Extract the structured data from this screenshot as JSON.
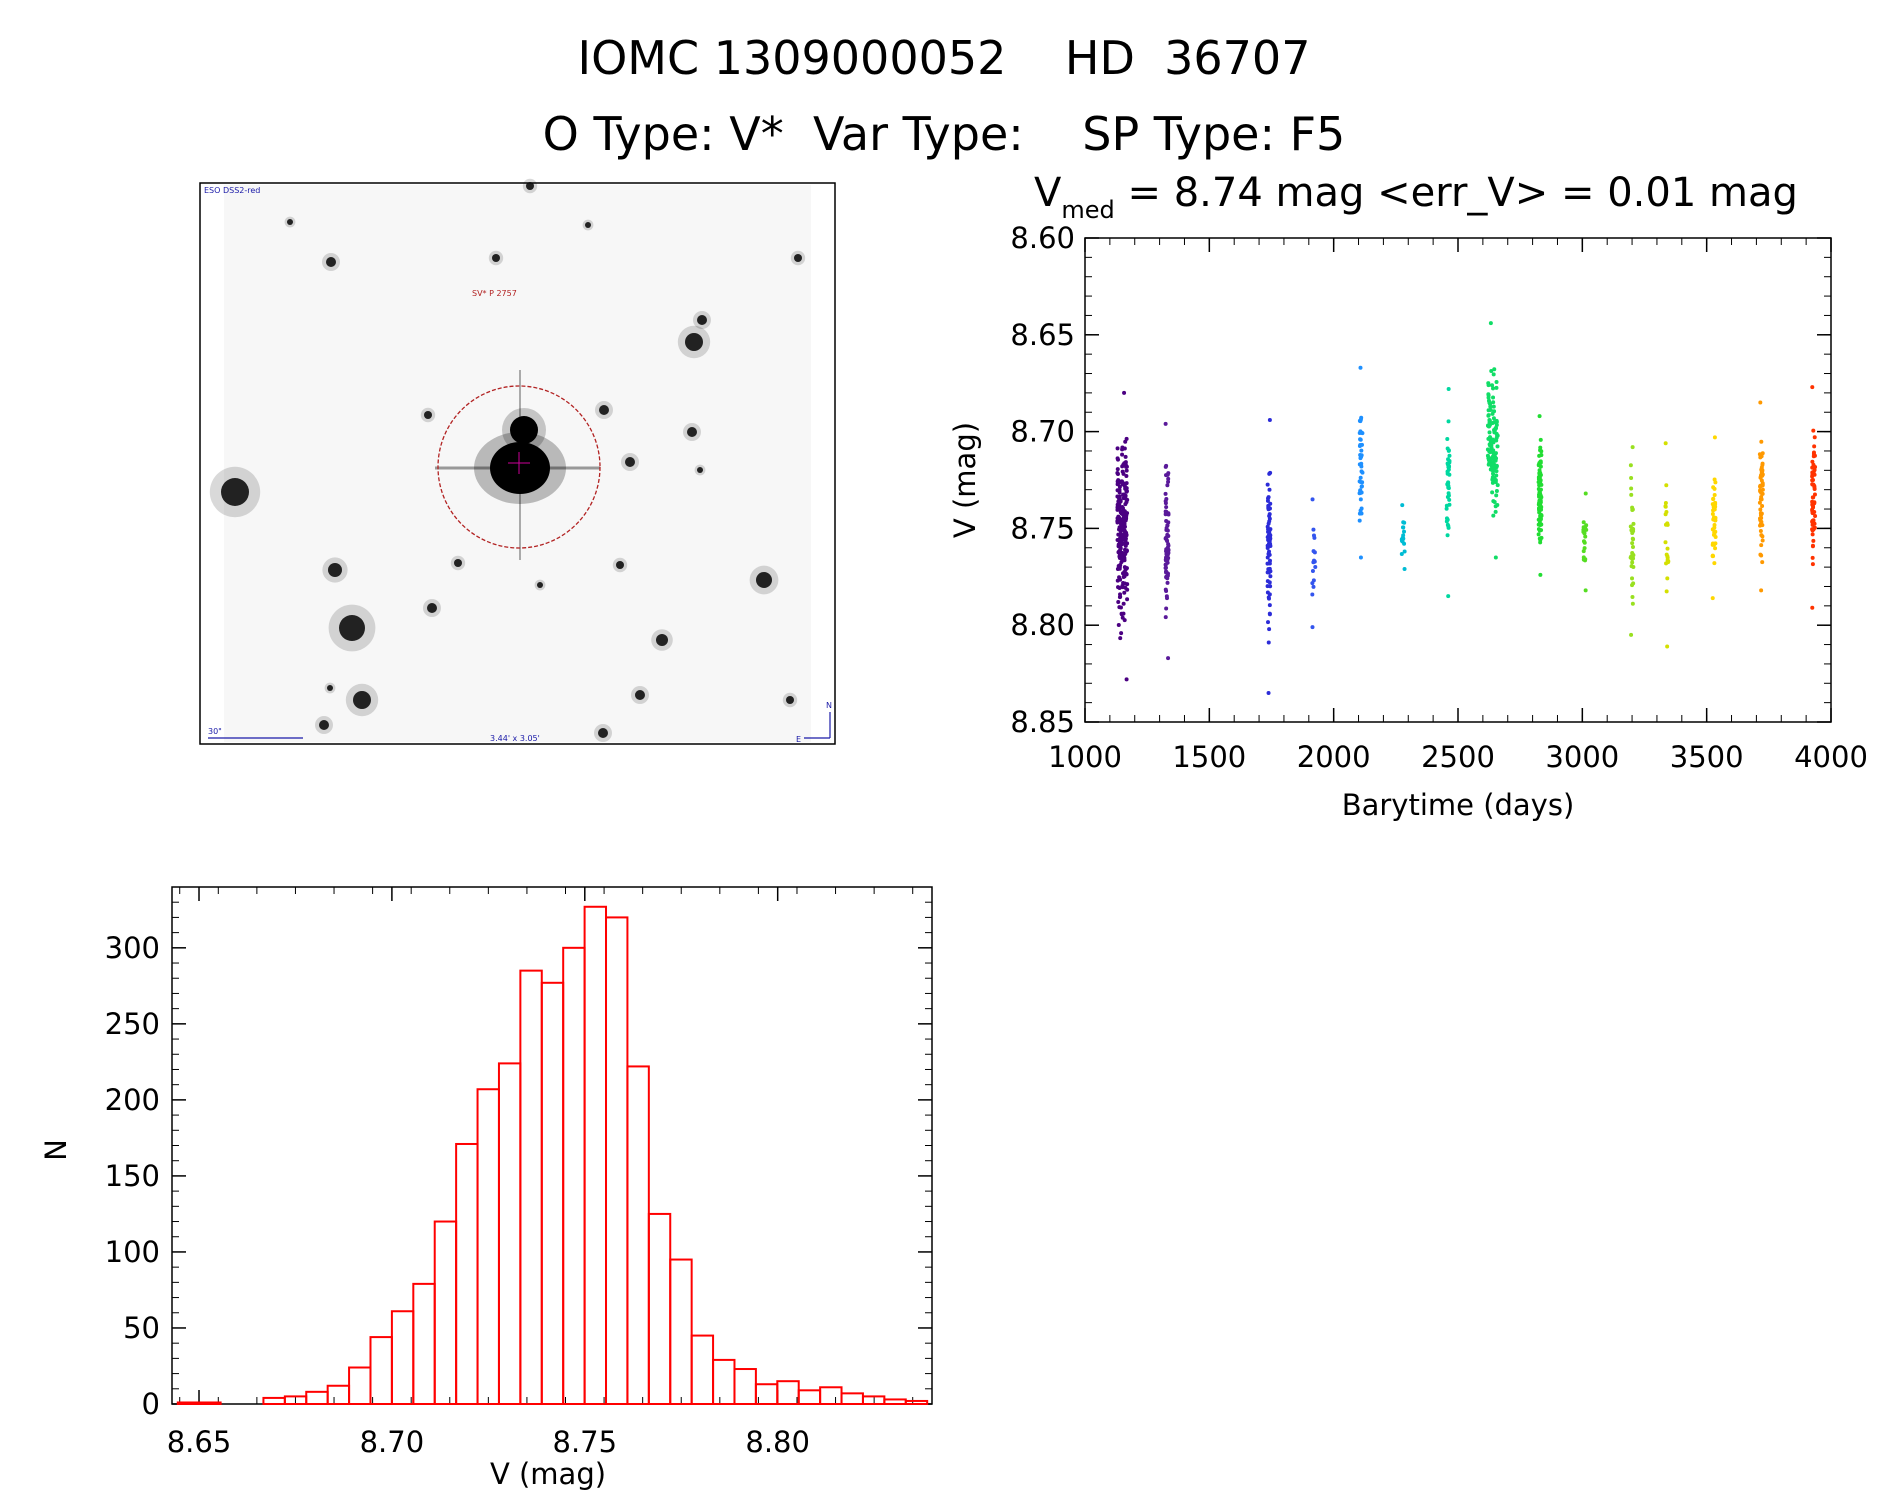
{
  "header": {
    "line1": "IOMC 1309000052    HD  36707",
    "line2": "O Type: V*  Var Type:    SP Type: F5"
  },
  "finder": {
    "survey_label": "ESO DSS2-red",
    "object_label": "SV* P 2757",
    "scale_label": "30\"",
    "fov_label": "3.44' x 3.05'",
    "north_label": "N",
    "east_label": "E",
    "colors": {
      "circle": "#b22222",
      "text_blue": "#1a1aa8"
    }
  },
  "lightcurve": {
    "title_prefix": "V",
    "title_subscript": "med",
    "title_rest": " = 8.74 mag <err_V> = 0.01 mag"
  },
  "chart_data": [
    {
      "type": "scatter",
      "xlabel": "Barytime (days)",
      "ylabel": "V (mag)",
      "xlim": [
        1000,
        4000
      ],
      "ylim": [
        8.85,
        8.6
      ],
      "y_inverted": true,
      "xticks": [
        "1000",
        "1500",
        "2000",
        "2500",
        "3000",
        "3500",
        "4000"
      ],
      "yticks": [
        "8.60",
        "8.65",
        "8.70",
        "8.75",
        "8.80",
        "8.85"
      ],
      "series": [
        {
          "x": 1150,
          "ymin": 8.68,
          "ymax": 8.828,
          "color": "#4b0082",
          "n": 220
        },
        {
          "x": 1330,
          "ymin": 8.696,
          "ymax": 8.817,
          "color": "#5a1a9a",
          "n": 70
        },
        {
          "x": 1740,
          "ymin": 8.694,
          "ymax": 8.835,
          "color": "#2c2cd8",
          "n": 70
        },
        {
          "x": 1920,
          "ymin": 8.735,
          "ymax": 8.801,
          "color": "#3355ee",
          "n": 14
        },
        {
          "x": 2110,
          "ymin": 8.667,
          "ymax": 8.765,
          "color": "#1e90ff",
          "n": 40
        },
        {
          "x": 2280,
          "ymin": 8.738,
          "ymax": 8.771,
          "color": "#00bcd4",
          "n": 14
        },
        {
          "x": 2460,
          "ymin": 8.678,
          "ymax": 8.785,
          "color": "#00d8a0",
          "n": 40
        },
        {
          "x": 2640,
          "ymin": 8.644,
          "ymax": 8.765,
          "color": "#11dd66",
          "n": 120
        },
        {
          "x": 2830,
          "ymin": 8.692,
          "ymax": 8.774,
          "color": "#22dd33",
          "n": 100
        },
        {
          "x": 3010,
          "ymin": 8.732,
          "ymax": 8.782,
          "color": "#55dd22",
          "n": 20
        },
        {
          "x": 3200,
          "ymin": 8.708,
          "ymax": 8.805,
          "color": "#99e020",
          "n": 35
        },
        {
          "x": 3340,
          "ymin": 8.706,
          "ymax": 8.811,
          "color": "#d4e000",
          "n": 20
        },
        {
          "x": 3530,
          "ymin": 8.703,
          "ymax": 8.786,
          "color": "#ffd700",
          "n": 45
        },
        {
          "x": 3720,
          "ymin": 8.685,
          "ymax": 8.782,
          "color": "#ff9900",
          "n": 55
        },
        {
          "x": 3930,
          "ymin": 8.677,
          "ymax": 8.791,
          "color": "#ff3300",
          "n": 60
        }
      ]
    },
    {
      "type": "bar",
      "xlabel": "V (mag)",
      "ylabel": "N",
      "xlim": [
        8.643,
        8.84
      ],
      "ylim": [
        0,
        340
      ],
      "xticks": [
        "8.65",
        "8.70",
        "8.75",
        "8.80"
      ],
      "yticks": [
        "0",
        "50",
        "100",
        "150",
        "200",
        "250",
        "300"
      ],
      "bin_start": 8.6445,
      "bin_width": 0.00555,
      "values": [
        1,
        1,
        0,
        0,
        4,
        5,
        8,
        12,
        24,
        44,
        61,
        79,
        120,
        171,
        207,
        224,
        285,
        277,
        300,
        327,
        320,
        222,
        125,
        95,
        45,
        29,
        23,
        13,
        15,
        9,
        11,
        7,
        5,
        3,
        2,
        0
      ],
      "color": "#ff0000"
    }
  ]
}
